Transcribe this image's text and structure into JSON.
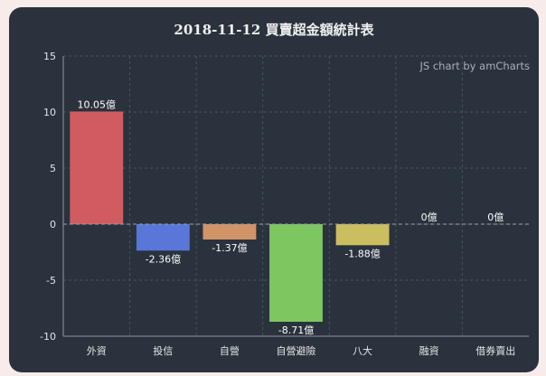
{
  "page": {
    "title": "2018-11-12 買賣超金額統計表",
    "credit": "JS chart by amCharts"
  },
  "chart_data": {
    "type": "bar",
    "title": "2018-11-12 買賣超金額統計表",
    "xlabel": "",
    "ylabel": "",
    "categories": [
      "外資",
      "投信",
      "自營",
      "自營避險",
      "八大",
      "融資",
      "借券賣出"
    ],
    "values": [
      10.05,
      -2.36,
      -1.37,
      -8.71,
      -1.88,
      0,
      0
    ],
    "data_labels": [
      "10.05億",
      "-2.36億",
      "-1.37億",
      "-8.71億",
      "-1.88億",
      "0億",
      "0億"
    ],
    "colors": [
      "#d95f63",
      "#5b7be0",
      "#d99a6a",
      "#83cf62",
      "#d4c663",
      "#5a9fd4",
      "#c56cd0"
    ],
    "ylim": [
      -10,
      15
    ],
    "yticks": [
      -10,
      -5,
      0,
      5,
      10,
      15
    ],
    "grid": true,
    "legend": "none"
  }
}
